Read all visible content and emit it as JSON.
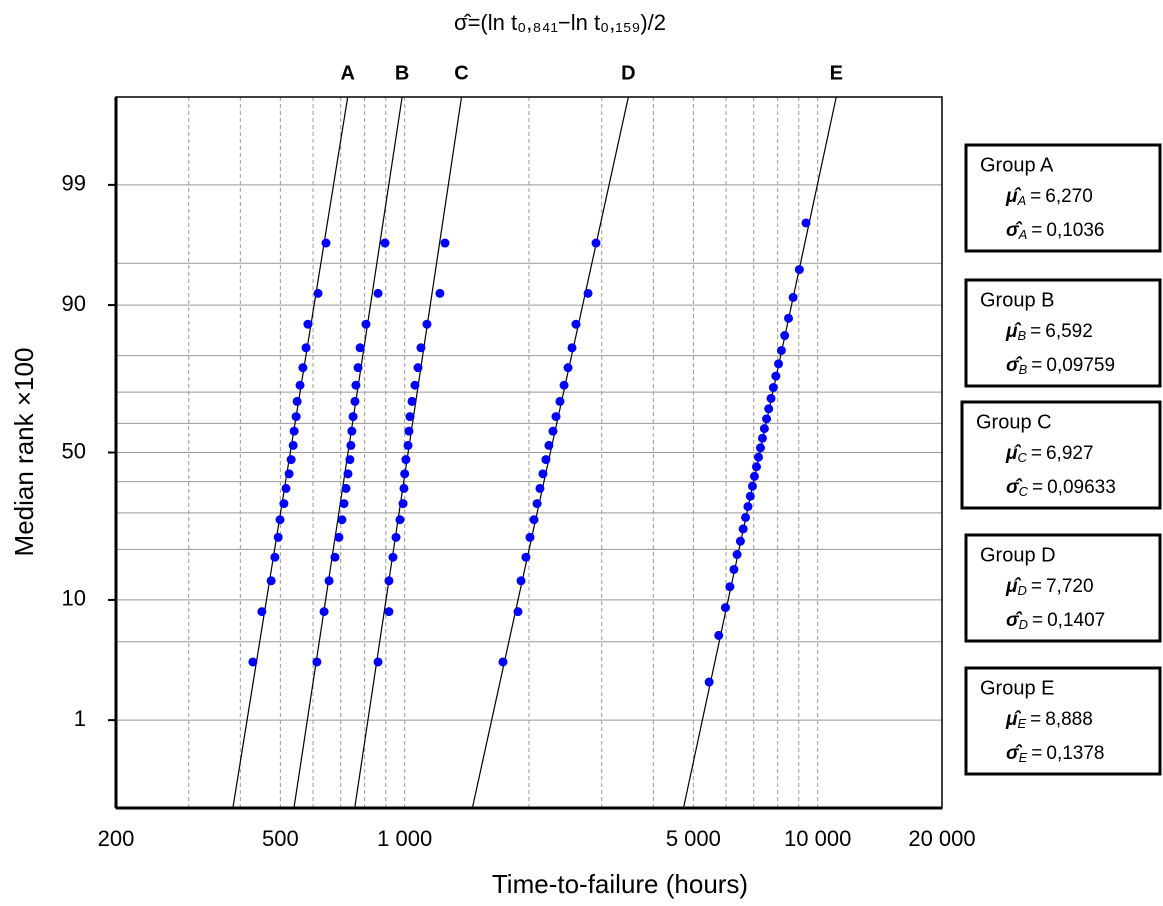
{
  "chart_data": {
    "type": "probability",
    "title": "σ̂=(ln t₀,₈₄₁−ln t₀,₁₅₉)/2",
    "x_label": "Time-to-failure (hours)",
    "y_label": "Median rank ×100",
    "x_scale": "log",
    "y_scale": "normal-probability",
    "xlim": [
      200,
      20000
    ],
    "xticks": [
      200,
      500,
      {
        "value": 1000,
        "label": "1 000"
      },
      {
        "value": 5000,
        "label": "5 000"
      },
      {
        "value": 10000,
        "label": "10 000"
      },
      {
        "value": 20000,
        "label": "20 000"
      }
    ],
    "xgrid_minor": [
      300,
      400,
      600,
      700,
      800,
      900,
      2000,
      3000,
      4000,
      6000,
      7000,
      8000,
      9000
    ],
    "ylim": [
      0.1,
      99.9
    ],
    "yticks": [
      1,
      10,
      50,
      90,
      99
    ],
    "ygrid_minor": [
      5,
      20,
      30,
      40,
      60,
      70,
      80,
      95
    ],
    "grid": true,
    "mu_symbol": "μ̂",
    "sigma_symbol": "σ̂",
    "relation": "=",
    "point_color": "#0000ff",
    "line_color": "#000000",
    "series": [
      {
        "name": "Group A",
        "label": "A",
        "mu": 6.27,
        "mu_label": "6,270",
        "sigma": 0.1036,
        "sigma_label": "0,1036",
        "x": [
          429,
          451,
          475,
          485,
          494,
          499,
          510,
          516,
          525,
          531,
          537,
          540,
          546,
          549,
          558,
          567,
          577,
          583,
          617,
          645
        ],
        "values": [
          3.43,
          8.33,
          13.24,
          18.14,
          23.04,
          27.94,
          32.84,
          37.75,
          42.65,
          47.55,
          52.45,
          57.35,
          62.25,
          67.16,
          72.06,
          76.96,
          81.86,
          86.76,
          91.67,
          96.57
        ]
      },
      {
        "name": "Group B",
        "label": "B",
        "mu": 6.592,
        "mu_label": "6,592",
        "sigma": 0.09759,
        "sigma_label": "0,09759",
        "x": [
          613,
          638,
          656,
          678,
          693,
          705,
          713,
          721,
          729,
          737,
          741,
          745,
          750,
          758,
          762,
          771,
          780,
          806,
          862,
          896
        ],
        "values": [
          3.43,
          8.33,
          13.24,
          18.14,
          23.04,
          27.94,
          32.84,
          37.75,
          42.65,
          47.55,
          52.45,
          57.35,
          62.25,
          67.16,
          72.06,
          76.96,
          81.86,
          86.76,
          91.67,
          96.57
        ]
      },
      {
        "name": "Group C",
        "label": "C",
        "mu": 6.927,
        "mu_label": "6,927",
        "sigma": 0.09633,
        "sigma_label": "0,09633",
        "x": [
          862,
          916,
          916,
          937,
          953,
          974,
          991,
          996,
          1000,
          1007,
          1019,
          1024,
          1030,
          1042,
          1059,
          1077,
          1095,
          1132,
          1217,
          1252
        ],
        "values": [
          3.43,
          8.33,
          13.24,
          18.14,
          23.04,
          27.94,
          32.84,
          37.75,
          42.65,
          47.55,
          52.45,
          57.35,
          62.25,
          67.16,
          72.06,
          76.96,
          81.86,
          86.76,
          91.67,
          96.57
        ]
      },
      {
        "name": "Group D",
        "label": "D",
        "mu": 7.72,
        "mu_label": "7,720",
        "sigma": 0.1407,
        "sigma_label": "0,1407",
        "x": [
          1730,
          1881,
          1913,
          1966,
          2011,
          2057,
          2092,
          2126,
          2162,
          2198,
          2235,
          2286,
          2325,
          2377,
          2432,
          2486,
          2542,
          2599,
          2780,
          2906
        ],
        "values": [
          3.43,
          8.33,
          13.24,
          18.14,
          23.04,
          27.94,
          32.84,
          37.75,
          42.65,
          47.55,
          52.45,
          57.35,
          62.25,
          67.16,
          72.06,
          76.96,
          81.86,
          86.76,
          91.67,
          96.57
        ]
      },
      {
        "name": "Group E",
        "label": "E",
        "mu": 8.888,
        "mu_label": "8,888",
        "sigma": 0.1378,
        "sigma_label": "0,1378",
        "x": [
          5460,
          5760,
          5980,
          6130,
          6270,
          6380,
          6500,
          6600,
          6690,
          6780,
          6870,
          6950,
          7030,
          7110,
          7190,
          7270,
          7350,
          7430,
          7520,
          7610,
          7710,
          7810,
          7920,
          8040,
          8170,
          8320,
          8500,
          8720,
          9030,
          9370
        ],
        "values": [
          2.3,
          5.59,
          8.88,
          12.17,
          15.46,
          18.75,
          22.04,
          25.33,
          28.62,
          31.91,
          35.2,
          38.49,
          41.78,
          45.07,
          48.36,
          51.64,
          54.93,
          58.22,
          61.51,
          64.8,
          68.09,
          71.38,
          74.67,
          77.96,
          81.25,
          84.54,
          87.83,
          91.12,
          94.41,
          97.7
        ]
      }
    ]
  }
}
